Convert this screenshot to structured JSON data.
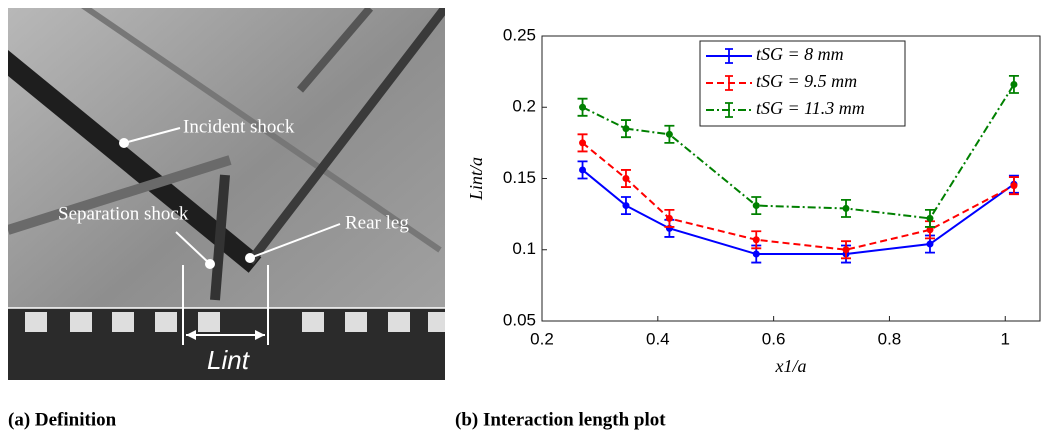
{
  "panel_a": {
    "labels": [
      "Incident shock",
      "Separation shock",
      "Rear leg"
    ],
    "length_label": "Lint"
  },
  "captions": [
    "(a) Definition",
    "(b) Interaction length plot"
  ],
  "chart_data": {
    "type": "line",
    "x_label": "x1/a",
    "y_label": "Lint/a",
    "x": [
      0.27,
      0.345,
      0.42,
      0.57,
      0.725,
      0.87,
      1.015
    ],
    "series": [
      {
        "name": "tSG = 8 mm",
        "color": "#0000ff",
        "style": "solid",
        "values": [
          0.156,
          0.131,
          0.115,
          0.097,
          0.097,
          0.104,
          0.146
        ],
        "errors": [
          0.006,
          0.006,
          0.006,
          0.006,
          0.006,
          0.006,
          0.006
        ]
      },
      {
        "name": "tSG = 9.5 mm",
        "color": "#ff0000",
        "style": "dashed",
        "values": [
          0.175,
          0.15,
          0.122,
          0.107,
          0.1,
          0.114,
          0.145
        ],
        "errors": [
          0.006,
          0.006,
          0.006,
          0.006,
          0.006,
          0.006,
          0.006
        ]
      },
      {
        "name": "tSG = 11.3 mm",
        "color": "#008000",
        "style": "dashdot",
        "values": [
          0.2,
          0.185,
          0.181,
          0.131,
          0.129,
          0.122,
          0.216
        ],
        "errors": [
          0.006,
          0.006,
          0.006,
          0.006,
          0.006,
          0.006,
          0.006
        ]
      }
    ],
    "xlim": [
      0.2,
      1.06
    ],
    "ylim": [
      0.05,
      0.25
    ],
    "xticks": [
      0.2,
      0.4,
      0.6,
      0.8,
      1
    ],
    "yticks": [
      0.05,
      0.1,
      0.15,
      0.2,
      0.25
    ],
    "grid": false,
    "legend": "top-center"
  }
}
